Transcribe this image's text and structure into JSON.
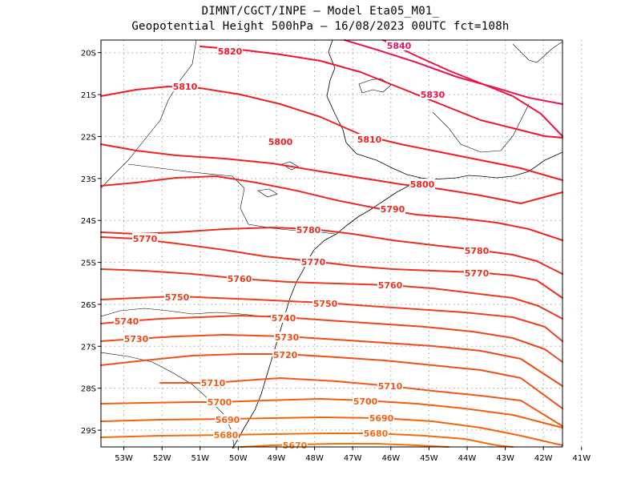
{
  "title": {
    "line1": "DIMNT/CGCT/INPE –  Model Eta05_M01_",
    "line2": "Geopotential Height 500hPa –  16/08/2023 00UTC fct=108h"
  },
  "axes": {
    "lon_labels": [
      "53W",
      "52W",
      "51W",
      "50W",
      "49W",
      "48W",
      "47W",
      "46W",
      "45W",
      "44W",
      "43W",
      "42W",
      "41W"
    ],
    "lat_labels": [
      "20S",
      "21S",
      "22S",
      "23S",
      "24S",
      "25S",
      "26S",
      "27S",
      "28S",
      "29S"
    ],
    "lon_range": [
      -53.6,
      -41.5
    ],
    "lat_range": [
      -29.4,
      -19.7
    ]
  },
  "colors": {
    "frame": "#000000",
    "grid": "#a0a0a0",
    "coast": "#000000"
  },
  "contours": [
    {
      "value": 5840,
      "label": "5840",
      "color": "#e8145a"
    },
    {
      "value": 5830,
      "label": "5830",
      "color": "#ec1440"
    },
    {
      "value": 5820,
      "label": "5820",
      "color": "#f0142c"
    },
    {
      "value": 5810,
      "label": "5810",
      "color": "#f01e22"
    },
    {
      "value": 5800,
      "label": "5800",
      "color": "#ee2220"
    },
    {
      "value": 5790,
      "label": "5790",
      "color": "#ee2820"
    },
    {
      "value": 5780,
      "label": "5780",
      "color": "#ec2c1e"
    },
    {
      "value": 5770,
      "label": "5770",
      "color": "#ec321e"
    },
    {
      "value": 5760,
      "label": "5760",
      "color": "#ec381c"
    },
    {
      "value": 5750,
      "label": "5750",
      "color": "#ee3e1c"
    },
    {
      "value": 5740,
      "label": "5740",
      "color": "#ee441a"
    },
    {
      "value": 5730,
      "label": "5730",
      "color": "#f04a18"
    },
    {
      "value": 5720,
      "label": "5720",
      "color": "#f05016"
    },
    {
      "value": 5710,
      "label": "5710",
      "color": "#f25814"
    },
    {
      "value": 5700,
      "label": "5700",
      "color": "#f45e12"
    },
    {
      "value": 5690,
      "label": "5690",
      "color": "#f46410"
    },
    {
      "value": 5680,
      "label": "5680",
      "color": "#f66a0e"
    },
    {
      "value": 5670,
      "label": "5670",
      "color": "#f6700c"
    }
  ]
}
